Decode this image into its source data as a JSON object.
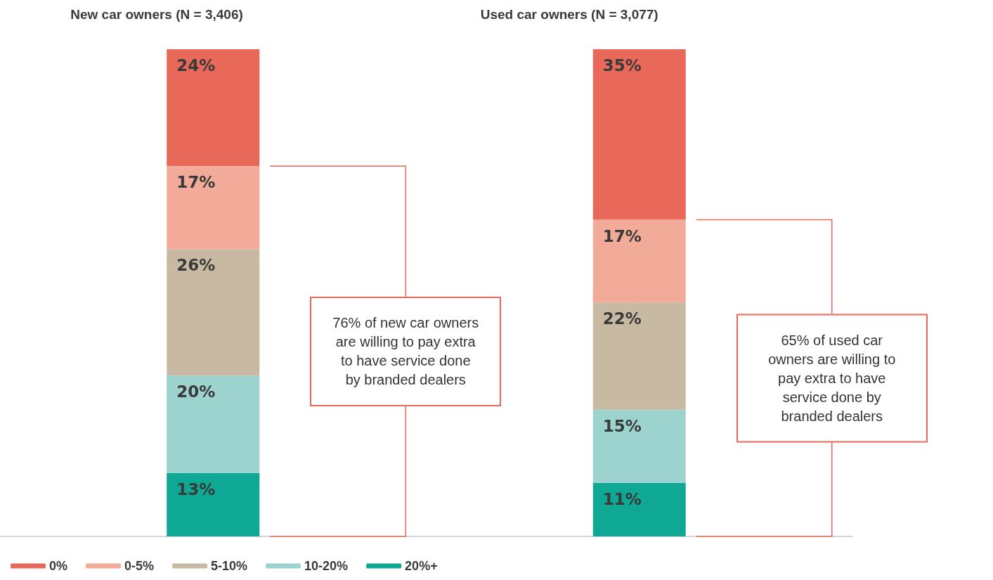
{
  "chart_data": {
    "type": "bar",
    "stacked": true,
    "categories": [
      null,
      null
    ],
    "ylim": [
      0,
      100
    ],
    "tick_labels": false,
    "grid": false,
    "legend": "bottom left",
    "series": [
      {
        "name": "20%+",
        "color": "#0ea894",
        "values": [
          13,
          11
        ],
        "value_labels": [
          "13%",
          "11%"
        ]
      },
      {
        "name": "10-20%",
        "color": "#9dd3cf",
        "values": [
          20,
          15
        ],
        "value_labels": [
          "20%",
          "15%"
        ]
      },
      {
        "name": "5-10%",
        "color": "#c8b9a3",
        "values": [
          26,
          22
        ],
        "value_labels": [
          "26%",
          "22%"
        ]
      },
      {
        "name": "0-5%",
        "color": "#f2ab98",
        "values": [
          17,
          17
        ],
        "value_labels": [
          "17%",
          "17%"
        ]
      },
      {
        "name": "0%",
        "color": "#e8695a",
        "values": [
          24,
          35
        ],
        "value_labels": [
          "24%",
          "35%"
        ]
      }
    ],
    "annotations": [
      "New car owners (N = 3,406)",
      "Used car owners (N = 3,077)",
      "76% of new car owners are willing to pay extra to have service done by branded dealers",
      "65% of used car owners are willing to pay extra to have service done by branded dealers"
    ]
  }
}
